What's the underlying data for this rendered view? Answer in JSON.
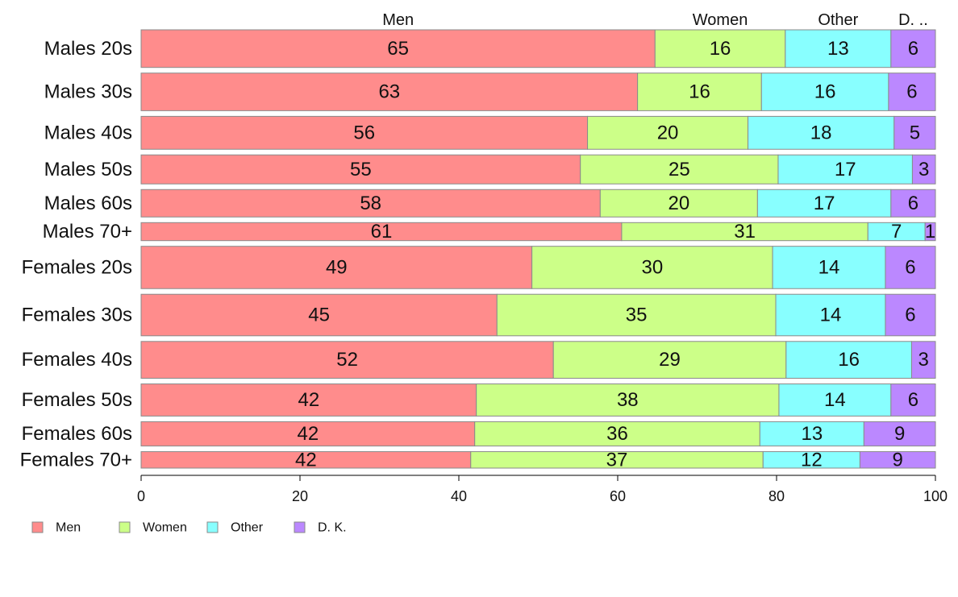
{
  "chart_data": {
    "type": "bar",
    "orientation": "horizontal",
    "stacked": true,
    "categories": [
      "Males 20s",
      "Males 30s",
      "Males 40s",
      "Males 50s",
      "Males 60s",
      "Males 70+",
      "Females 20s",
      "Females 30s",
      "Females 40s",
      "Females 50s",
      "Females 60s",
      "Females 70+"
    ],
    "series": [
      {
        "name": "Men",
        "color": "#ff8c8c",
        "values": [
          64.7,
          62.5,
          56.2,
          55.3,
          57.8,
          60.5,
          49.2,
          44.8,
          51.9,
          42.2,
          42.0,
          41.5
        ]
      },
      {
        "name": "Women",
        "color": "#ccff88",
        "values": [
          16.4,
          15.6,
          20.2,
          24.9,
          19.8,
          31.0,
          30.3,
          35.1,
          29.3,
          38.1,
          35.9,
          36.8
        ]
      },
      {
        "name": "Other",
        "color": "#88ffff",
        "values": [
          13.3,
          16.0,
          18.4,
          16.9,
          16.8,
          7.2,
          14.2,
          13.8,
          15.8,
          14.1,
          13.1,
          12.2
        ]
      },
      {
        "name": "D. K.",
        "color": "#bb88ff",
        "values": [
          5.6,
          5.9,
          5.2,
          2.9,
          5.6,
          1.3,
          6.3,
          6.3,
          3.0,
          5.6,
          9.0,
          9.5
        ]
      }
    ],
    "segment_labels": [
      [
        "65",
        "16",
        "13",
        "6"
      ],
      [
        "63",
        "16",
        "16",
        "6"
      ],
      [
        "56",
        "20",
        "18",
        "5"
      ],
      [
        "55",
        "25",
        "17",
        "3"
      ],
      [
        "58",
        "20",
        "17",
        "6"
      ],
      [
        "61",
        "31",
        "7",
        "1"
      ],
      [
        "49",
        "30",
        "14",
        "6"
      ],
      [
        "45",
        "35",
        "14",
        "6"
      ],
      [
        "52",
        "29",
        "16",
        "3"
      ],
      [
        "42",
        "38",
        "14",
        "6"
      ],
      [
        "42",
        "36",
        "13",
        "9"
      ],
      [
        "42",
        "37",
        "12",
        "9"
      ]
    ],
    "row_weights": [
      48,
      48,
      42,
      37,
      35,
      23,
      54,
      53,
      47,
      41,
      31,
      21
    ],
    "column_headers": [
      "Men",
      "Women",
      "Other",
      "D. .."
    ],
    "xlim": [
      0,
      100
    ],
    "xticks": [
      "0",
      "20",
      "40",
      "60",
      "80",
      "100"
    ],
    "legend": {
      "position": "bottom-left",
      "entries": [
        "Men",
        "Women",
        "Other",
        "D. K."
      ]
    },
    "grid": false,
    "title": "",
    "xlabel": "",
    "ylabel": ""
  }
}
